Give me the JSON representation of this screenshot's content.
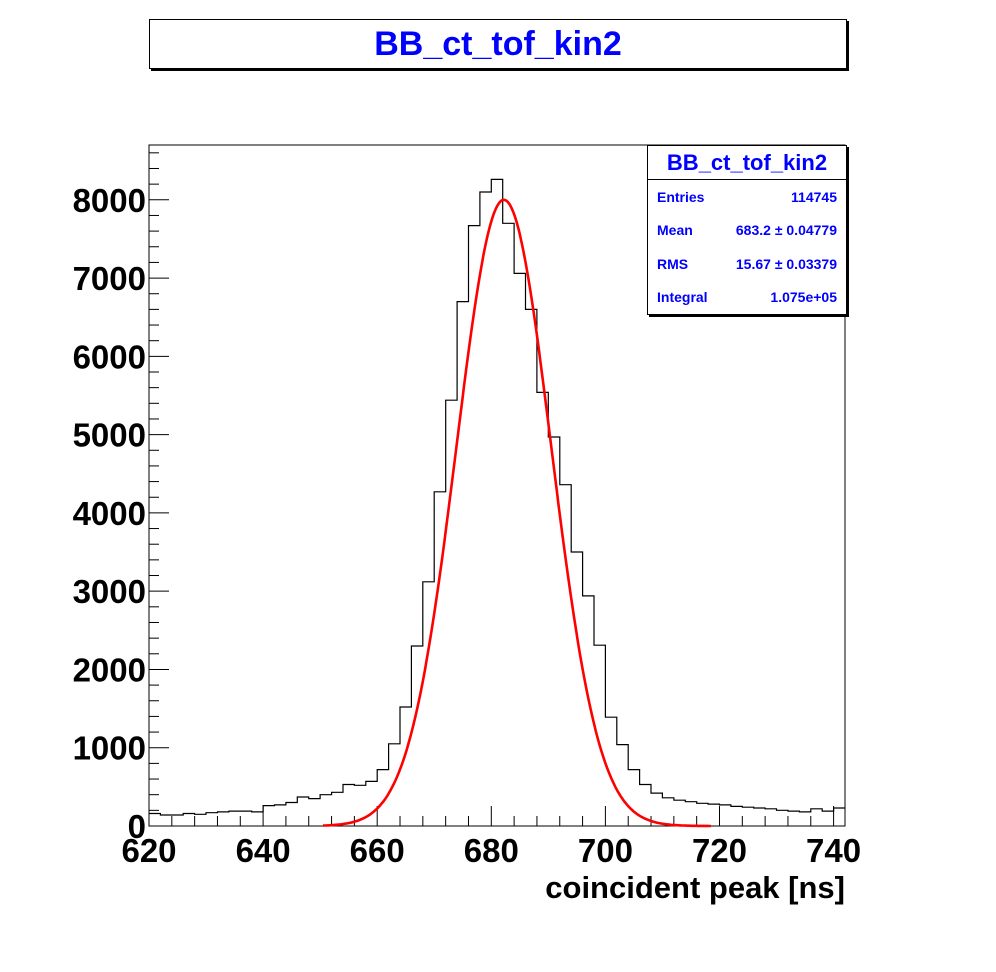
{
  "title": "BB_ct_tof_kin2",
  "chart_data": {
    "type": "histogram",
    "title": "BB_ct_tof_kin2",
    "xlabel": "coincident peak [ns]",
    "ylabel": "",
    "xlim": [
      620,
      742
    ],
    "ylim": [
      0,
      8700
    ],
    "x_ticks": [
      "620",
      "640",
      "660",
      "680",
      "700",
      "720",
      "740"
    ],
    "y_ticks": [
      "0",
      "1000",
      "2000",
      "3000",
      "4000",
      "5000",
      "6000",
      "7000",
      "8000"
    ],
    "bin_width": 2,
    "bin_edges_start": 620,
    "bin_contents": [
      160,
      140,
      140,
      160,
      150,
      170,
      180,
      190,
      190,
      180,
      260,
      270,
      300,
      370,
      350,
      400,
      430,
      530,
      520,
      570,
      720,
      1050,
      1520,
      2300,
      3120,
      4270,
      5440,
      6700,
      7670,
      8100,
      8260,
      7700,
      7060,
      6600,
      5540,
      4970,
      4360,
      3500,
      2940,
      2310,
      1390,
      1040,
      720,
      530,
      420,
      360,
      330,
      310,
      290,
      280,
      270,
      250,
      240,
      230,
      220,
      200,
      190,
      180,
      220,
      190,
      230
    ],
    "fit": {
      "function": "gaus",
      "color": "#ff0000",
      "amplitude": 8000,
      "mean": 682.2,
      "sigma": 8.3,
      "range": [
        650.5,
        718.5
      ]
    },
    "stats": {
      "title": "BB_ct_tof_kin2",
      "rows": [
        {
          "label": "Entries",
          "value": "114745"
        },
        {
          "label": "Mean",
          "value": "683.2 ± 0.04779"
        },
        {
          "label": "RMS",
          "value": "15.67 ± 0.03379"
        },
        {
          "label": "Integral",
          "value": "1.075e+05"
        }
      ]
    },
    "histogram_color": "#000000",
    "title_color": "#0000ff",
    "stats_text_color": "#0000ff"
  }
}
